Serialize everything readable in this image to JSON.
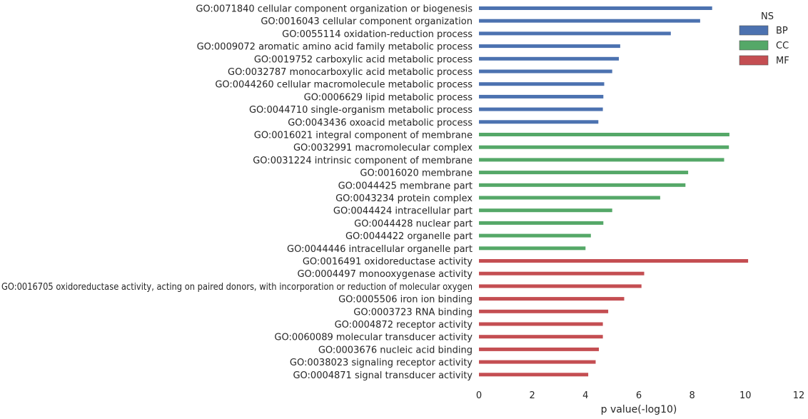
{
  "chart_data": {
    "type": "bar",
    "orientation": "horizontal",
    "title": "",
    "xlabel": "p value(-log10)",
    "ylabel": "",
    "xlim": [
      0,
      12
    ],
    "xticks": [
      0,
      2,
      4,
      6,
      8,
      10,
      12
    ],
    "grid": false,
    "legend": {
      "title": "NS",
      "placement": "top-right",
      "entries": [
        {
          "name": "BP",
          "color": "#4c72b0"
        },
        {
          "name": "CC",
          "color": "#55a868"
        },
        {
          "name": "MF",
          "color": "#c44e52"
        }
      ]
    },
    "bars": [
      {
        "label": "GO:0071840 cellular component organization or biogenesis",
        "value": 8.75,
        "ns": "BP"
      },
      {
        "label": "GO:0016043 cellular component organization",
        "value": 8.3,
        "ns": "BP"
      },
      {
        "label": "GO:0055114 oxidation-reduction process",
        "value": 7.2,
        "ns": "BP"
      },
      {
        "label": "GO:0009072 aromatic amino acid family metabolic process",
        "value": 5.3,
        "ns": "BP"
      },
      {
        "label": "GO:0019752 carboxylic acid metabolic process",
        "value": 5.25,
        "ns": "BP"
      },
      {
        "label": "GO:0032787 monocarboxylic acid metabolic process",
        "value": 5.0,
        "ns": "BP"
      },
      {
        "label": "GO:0044260 cellular macromolecule metabolic process",
        "value": 4.7,
        "ns": "BP"
      },
      {
        "label": "GO:0006629 lipid metabolic process",
        "value": 4.67,
        "ns": "BP"
      },
      {
        "label": "GO:0044710 single-organism metabolic process",
        "value": 4.65,
        "ns": "BP"
      },
      {
        "label": "GO:0043436 oxoacid metabolic process",
        "value": 4.48,
        "ns": "BP"
      },
      {
        "label": "GO:0016021 integral component of membrane",
        "value": 9.4,
        "ns": "CC"
      },
      {
        "label": "GO:0032991 macromolecular complex",
        "value": 9.38,
        "ns": "CC"
      },
      {
        "label": "GO:0031224 intrinsic component of membrane",
        "value": 9.2,
        "ns": "CC"
      },
      {
        "label": "GO:0016020 membrane",
        "value": 7.85,
        "ns": "CC"
      },
      {
        "label": "GO:0044425 membrane part",
        "value": 7.75,
        "ns": "CC"
      },
      {
        "label": "GO:0043234 protein complex",
        "value": 6.8,
        "ns": "CC"
      },
      {
        "label": "GO:0044424 intracellular part",
        "value": 5.0,
        "ns": "CC"
      },
      {
        "label": "GO:0044428 nuclear part",
        "value": 4.67,
        "ns": "CC"
      },
      {
        "label": "GO:0044422 organelle part",
        "value": 4.2,
        "ns": "CC"
      },
      {
        "label": "GO:0044446 intracellular organelle part",
        "value": 4.0,
        "ns": "CC"
      },
      {
        "label": "GO:0016491 oxidoreductase activity",
        "value": 10.1,
        "ns": "MF"
      },
      {
        "label": "GO:0004497 monooxygenase activity",
        "value": 6.2,
        "ns": "MF"
      },
      {
        "label": "GO:0016705 oxidoreductase activity, acting on paired donors, with incorporation or reduction of molecular oxygen",
        "value": 6.1,
        "ns": "MF"
      },
      {
        "label": "GO:0005506 iron ion binding",
        "value": 5.45,
        "ns": "MF"
      },
      {
        "label": "GO:0003723 RNA binding",
        "value": 4.85,
        "ns": "MF"
      },
      {
        "label": "GO:0004872 receptor activity",
        "value": 4.65,
        "ns": "MF"
      },
      {
        "label": "GO:0060089 molecular transducer activity",
        "value": 4.65,
        "ns": "MF"
      },
      {
        "label": "GO:0003676 nucleic acid binding",
        "value": 4.5,
        "ns": "MF"
      },
      {
        "label": "GO:0038023 signaling receptor activity",
        "value": 4.38,
        "ns": "MF"
      },
      {
        "label": "GO:0004871 signal transducer activity",
        "value": 4.1,
        "ns": "MF"
      }
    ]
  }
}
